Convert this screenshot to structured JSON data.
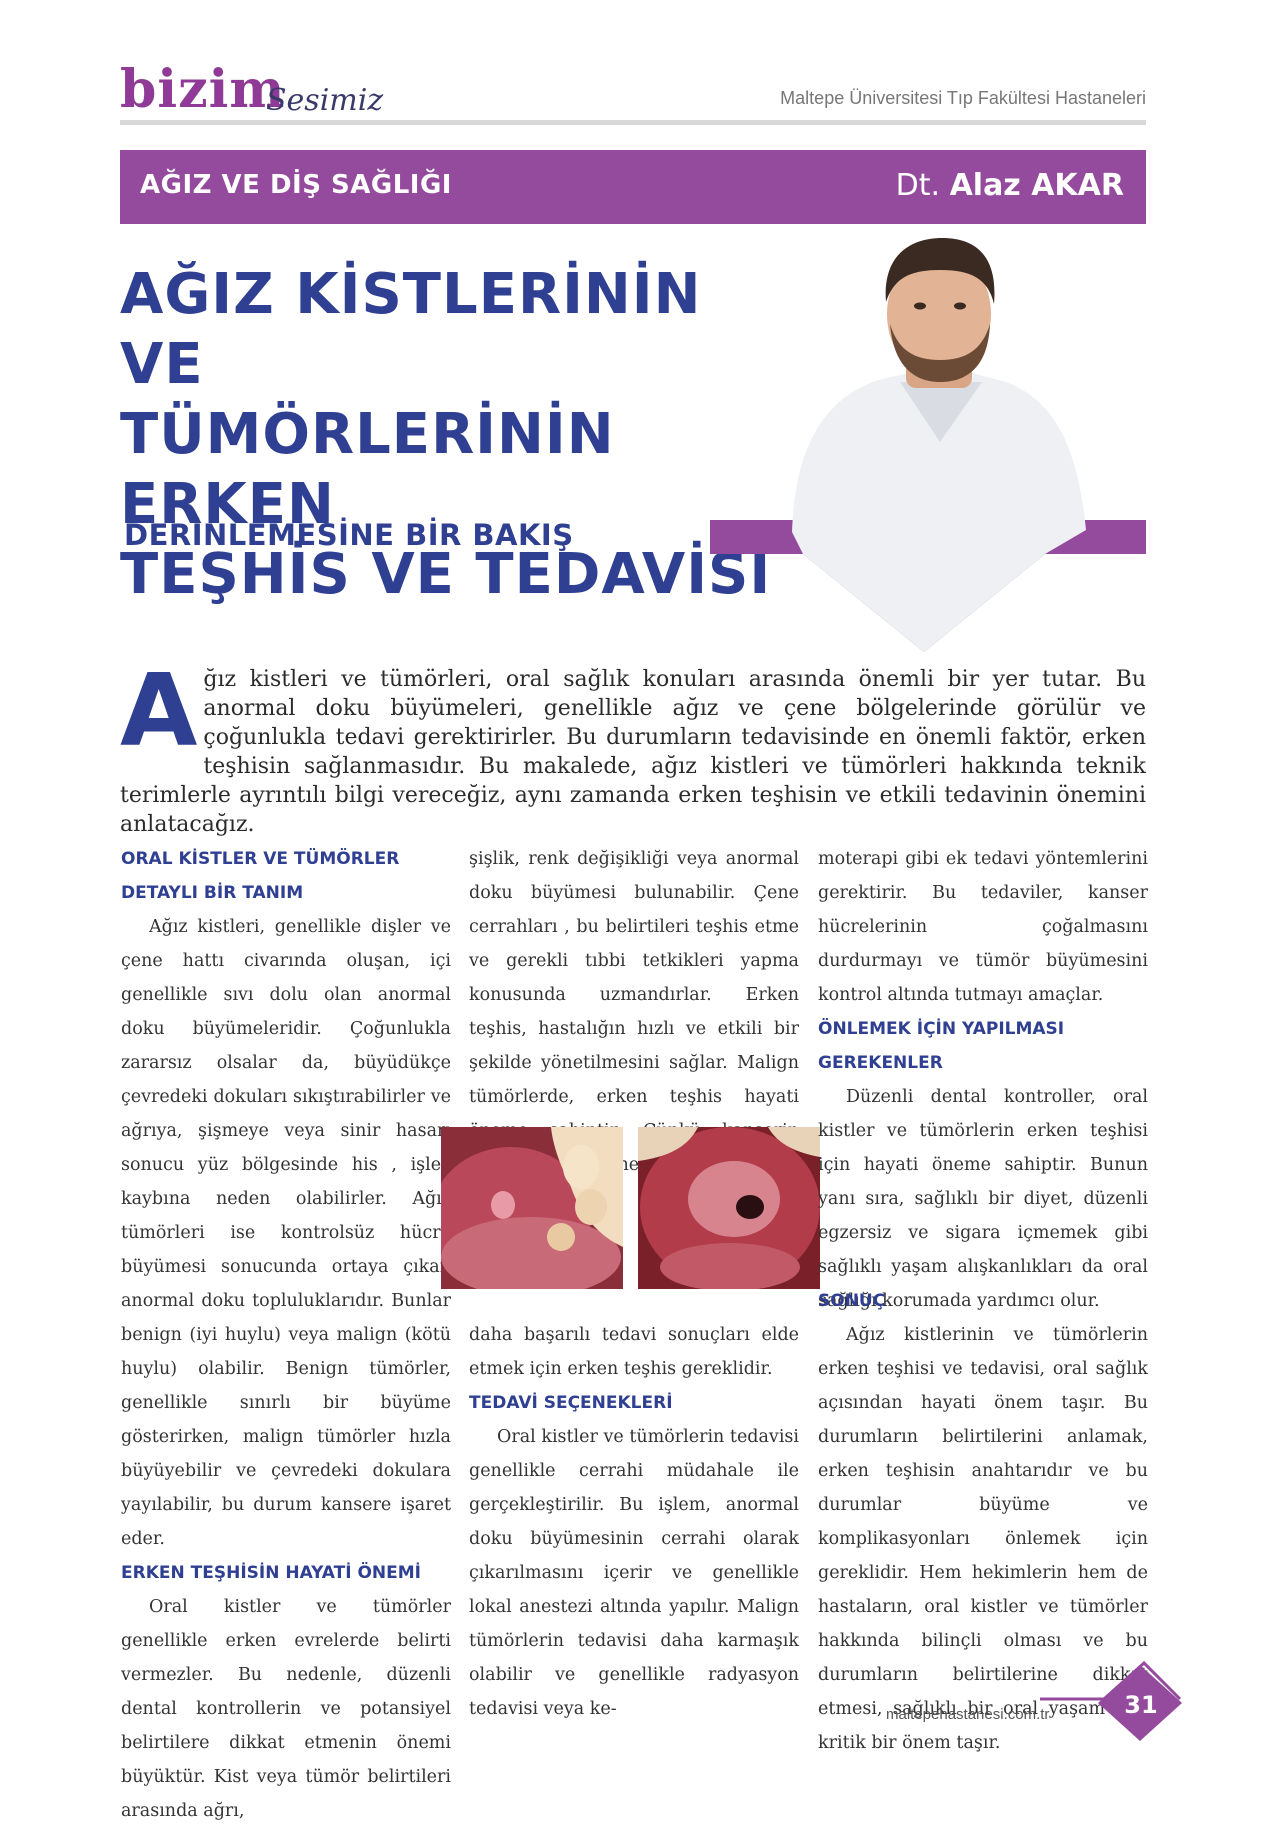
{
  "header": {
    "logo_main": "bizim",
    "logo_script": "Sesimiz",
    "hospital": "Maltepe Üniversitesi Tıp Fakültesi Hastaneleri"
  },
  "band": {
    "category": "AĞIZ VE DİŞ SAĞLIĞI",
    "author_prefix": "Dt.",
    "author_name": "Alaz AKAR"
  },
  "title": {
    "line1": "AĞIZ KİSTLERİNİN VE",
    "line2": "TÜMÖRLERİNİN ERKEN",
    "line3": "TEŞHİS VE TEDAVİSİ",
    "subtitle": "DERİNLEMESİNE BİR BAKIŞ"
  },
  "intro": {
    "dropcap": "A",
    "text": "ğız kistleri ve tümörleri, oral sağlık konuları arasında önemli bir yer tutar. Bu anormal doku büyümeleri, genellikle ağız ve çene bölgelerinde görülür ve çoğunlukla tedavi gerektirirler. Bu durumların tedavisinde en önemli faktör, erken teşhisin sağlanmasıdır. Bu makalede, ağız kistleri ve tümörleri hakkında teknik terimlerle ayrıntılı bilgi vereceğiz, aynı zamanda erken teşhisin ve etkili tedavinin önemini anlatacağız."
  },
  "col1": {
    "heading1": "ORAL KİSTLER VE TÜMÖRLER DETAYLI BİR TANIM",
    "para1": "Ağız kistleri, genellikle dişler ve çene hattı civarında oluşan, içi genellikle sıvı dolu olan anormal doku büyümeleridir. Çoğunlukla zararsız olsalar da, büyüdükçe çevredeki dokuları sıkıştırabilirler ve ağrıya, şişmeye veya sinir hasarı sonucu yüz bölgesinde his , işlev kaybına neden olabilirler. Ağız tümörleri ise kontrolsüz hücre büyümesi sonucunda ortaya çıkan anormal doku topluluklarıdır. Bunlar benign (iyi huylu) veya malign (kötü huylu) olabilir. Benign tümörler, genellikle sınırlı bir büyüme gösterirken, malign tümörler hızla büyüyebilir ve çevredeki dokulara yayılabilir, bu durum kansere işaret eder.",
    "heading2": "ERKEN TEŞHİSİN HAYATİ ÖNEMİ",
    "para2": "Oral kistler ve tümörler genellikle erken evrelerde belirti vermezler. Bu nedenle, düzenli dental kontrollerin ve potansiyel belirtilere dikkat etmenin önemi büyüktür. Kist veya tümör belirtileri arasında ağrı,"
  },
  "col2": {
    "para1": "şişlik, renk değişikliği veya anormal doku büyümesi bulunabilir. Çene cerrahları , bu belirtileri teşhis etme ve gerekli tıbbi tetkikleri yapma konusunda uzmandırlar. Erken teşhis, hastalığın hızlı ve etkili bir şekilde yönetilmesini sağlar. Malign tümörlerde, erken teşhis hayati öneme sahiptir. Çünkü kanserin yayılmasını önlemek ve",
    "para2": "daha başarılı tedavi sonuçları elde etmek için erken teşhis gereklidir.",
    "heading": "TEDAVİ SEÇENEKLERİ",
    "para3": "Oral kistler ve tümörlerin tedavisi genellikle cerrahi müdahale ile gerçekleştirilir. Bu işlem, anormal doku büyümesinin cerrahi olarak çıkarılmasını içerir ve genellikle lokal anestezi altında yapılır. Malign tümörlerin tedavisi daha karmaşık olabilir ve genellikle radyasyon tedavisi veya ke-"
  },
  "col3": {
    "para1": "moterapi gibi ek tedavi yöntemlerini gerektirir. Bu tedaviler, kanser hücrelerinin çoğalmasını durdurmayı ve tümör büyümesini kontrol altında tutmayı amaçlar.",
    "heading1": "ÖNLEMEK İÇİN YAPILMASI GEREKENLER",
    "para2": "Düzenli dental kontroller, oral kistler ve tümörlerin erken teşhisi için hayati öneme sahiptir. Bunun yanı sıra, sağlıklı bir diyet, düzenli egzersiz ve sigara içmemek gibi sağlıklı yaşam alışkanlıkları da oral sağlığı korumada yardımcı olur.",
    "heading2": "SONUÇ",
    "para3": "Ağız kistlerinin ve tümörlerin erken teşhisi ve tedavisi, oral sağlık açısından hayati önem taşır. Bu durumların belirtilerini anlamak, erken teşhisin anahtarıdır ve bu durumlar büyüme ve komplikasyonları önlemek için gereklidir. Hem hekimlerin hem de hastaların, oral kistler ve tümörler hakkında bilinçli olması ve bu durumların belirtilerine dikkat etmesi, sağlıklı bir oral yaşam için kritik bir önem taşır."
  },
  "footer": {
    "site": "maltepehastanesi.com.tr",
    "page": "31"
  },
  "colors": {
    "purple": "#954b9d",
    "navy": "#2f3f92"
  }
}
